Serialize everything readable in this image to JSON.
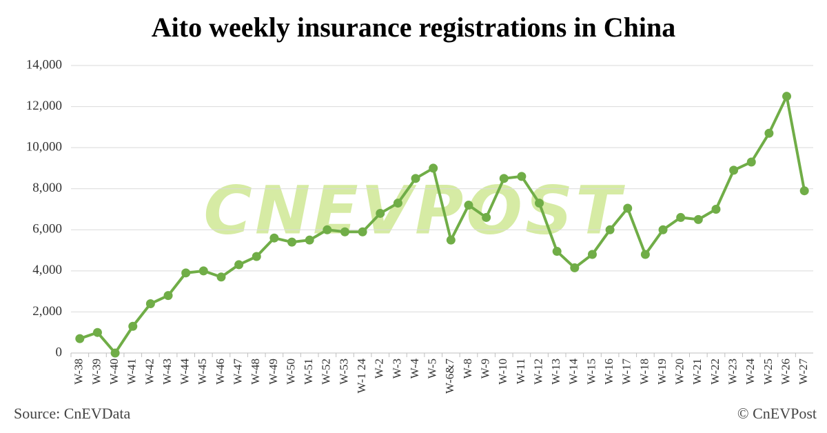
{
  "chart_data": {
    "type": "line",
    "title": "Aito weekly insurance registrations in China",
    "source": "Source: CnEVData",
    "credit": "© CnEVPost",
    "watermark": "CNEVPOST",
    "categories": [
      "W-38",
      "W-39",
      "W-40",
      "W-41",
      "W-42",
      "W-43",
      "W-44",
      "W-45",
      "W-46",
      "W-47",
      "W-48",
      "W-49",
      "W-50",
      "W-51",
      "W-52",
      "W-53",
      "W-1 24",
      "W-2",
      "W-3",
      "W-4",
      "W-5",
      "W-6&7",
      "W-8",
      "W-9",
      "W-10",
      "W-11",
      "W-12",
      "W-13",
      "W-14",
      "W-15",
      "W-16",
      "W-17",
      "W-18",
      "W-19",
      "W-20",
      "W-21",
      "W-22",
      "W-23",
      "W-24",
      "W-25",
      "W-26",
      "W-27"
    ],
    "series": [
      {
        "color": "#70ad47",
        "values": [
          700,
          1000,
          0,
          1300,
          2400,
          2800,
          3900,
          4000,
          3700,
          4300,
          4700,
          5600,
          5400,
          5500,
          6000,
          5900,
          5900,
          6800,
          7300,
          8500,
          9000,
          5500,
          7200,
          6600,
          8500,
          8600,
          7300,
          4950,
          4150,
          4800,
          6000,
          7050,
          4800,
          6000,
          6600,
          6500,
          7000,
          8900,
          9300,
          10700,
          12500,
          7900
        ]
      }
    ],
    "ylim": [
      0,
      14000
    ],
    "yticks": [
      0,
      {
        "value": 2000,
        "label": "2,000"
      },
      {
        "value": 4000,
        "label": "4,000"
      },
      {
        "value": 6000,
        "label": "6,000"
      },
      {
        "value": 8000,
        "label": "8,000"
      },
      {
        "value": 10000,
        "label": "10,000"
      },
      {
        "value": 12000,
        "label": "12,000"
      },
      {
        "value": 14000,
        "label": "14,000"
      }
    ],
    "grid": true
  }
}
